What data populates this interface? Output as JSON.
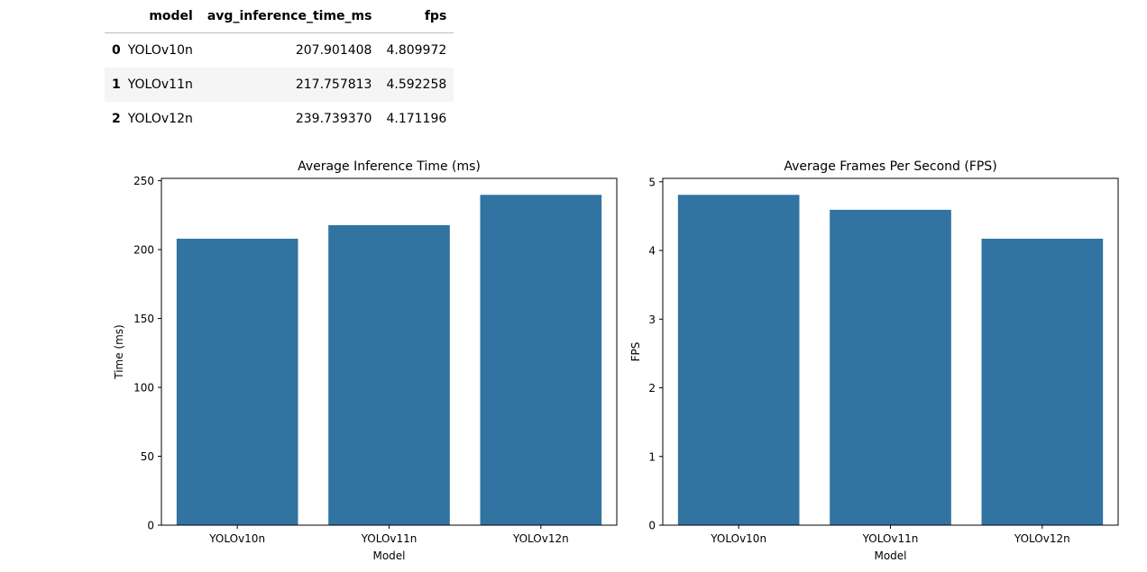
{
  "table": {
    "columns": [
      "",
      "model",
      "avg_inference_time_ms",
      "fps"
    ],
    "rows": [
      {
        "index": "0",
        "model": "YOLOv10n",
        "avg_inference_time_ms": "207.901408",
        "fps": "4.809972"
      },
      {
        "index": "1",
        "model": "YOLOv11n",
        "avg_inference_time_ms": "217.757813",
        "fps": "4.592258"
      },
      {
        "index": "2",
        "model": "YOLOv12n",
        "avg_inference_time_ms": "239.739370",
        "fps": "4.171196"
      }
    ]
  },
  "colors": {
    "bar": "#3274a1"
  },
  "chart_data": [
    {
      "type": "bar",
      "title": "Average Inference Time (ms)",
      "xlabel": "Model",
      "ylabel": "Time (ms)",
      "categories": [
        "YOLOv10n",
        "YOLOv11n",
        "YOLOv12n"
      ],
      "values": [
        207.901408,
        217.757813,
        239.73937
      ],
      "ylim": [
        0,
        251.7
      ],
      "yticks": [
        0,
        50,
        100,
        150,
        200,
        250
      ],
      "grid": false
    },
    {
      "type": "bar",
      "title": "Average Frames Per Second (FPS)",
      "xlabel": "Model",
      "ylabel": "FPS",
      "categories": [
        "YOLOv10n",
        "YOLOv11n",
        "YOLOv12n"
      ],
      "values": [
        4.809972,
        4.592258,
        4.171196
      ],
      "ylim": [
        0,
        5.05
      ],
      "yticks": [
        0,
        1,
        2,
        3,
        4,
        5
      ],
      "grid": false
    }
  ]
}
